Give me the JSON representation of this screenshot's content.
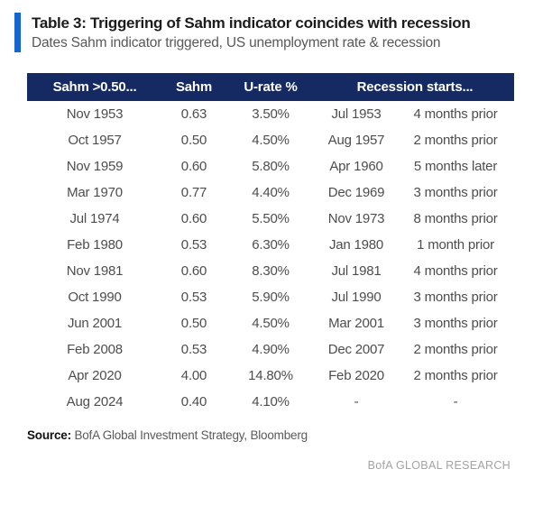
{
  "colors": {
    "accent_blue_bar": "#1565d0",
    "header_navy": "#152a63",
    "title_text": "#1c1c1c",
    "body_text": "#4d4d4d",
    "brand_text": "#a3a3a3"
  },
  "header": {
    "title": "Table 3: Triggering of Sahm indicator coincides with recession",
    "subtitle": "Dates Sahm indicator triggered, US unemployment rate & recession"
  },
  "table": {
    "columns": [
      "Sahm >0.50...",
      "Sahm",
      "U-rate %",
      "Recession starts..."
    ]
  },
  "footer": {
    "source_label": "Source:",
    "source_text": "BofA Global Investment Strategy, Bloomberg",
    "brand": "BofA GLOBAL RESEARCH"
  },
  "chart_data": {
    "type": "table",
    "title": "Table 3: Triggering of Sahm indicator coincides with recession",
    "subtitle": "Dates Sahm indicator triggered, US unemployment rate & recession",
    "columns": [
      "Sahm >0.50... (date triggered)",
      "Sahm",
      "U-rate %",
      "Recession starts (date)",
      "Recession starts (timing)"
    ],
    "rows": [
      [
        "Nov 1953",
        "0.63",
        "3.50%",
        "Jul 1953",
        "4 months prior"
      ],
      [
        "Oct 1957",
        "0.50",
        "4.50%",
        "Aug 1957",
        "2 months prior"
      ],
      [
        "Nov 1959",
        "0.60",
        "5.80%",
        "Apr 1960",
        "5 months later"
      ],
      [
        "Mar 1970",
        "0.77",
        "4.40%",
        "Dec 1969",
        "3 months prior"
      ],
      [
        "Jul 1974",
        "0.60",
        "5.50%",
        "Nov 1973",
        "8 months prior"
      ],
      [
        "Feb 1980",
        "0.53",
        "6.30%",
        "Jan 1980",
        "1 month prior"
      ],
      [
        "Nov 1981",
        "0.60",
        "8.30%",
        "Jul 1981",
        "4 months prior"
      ],
      [
        "Oct 1990",
        "0.53",
        "5.90%",
        "Jul 1990",
        "3 months prior"
      ],
      [
        "Jun 2001",
        "0.50",
        "4.50%",
        "Mar 2001",
        "3 months prior"
      ],
      [
        "Feb 2008",
        "0.53",
        "4.90%",
        "Dec 2007",
        "2 months prior"
      ],
      [
        "Apr 2020",
        "4.00",
        "14.80%",
        "Feb 2020",
        "2 months prior"
      ],
      [
        "Aug 2024",
        "0.40",
        "4.10%",
        "-",
        "-"
      ]
    ]
  }
}
